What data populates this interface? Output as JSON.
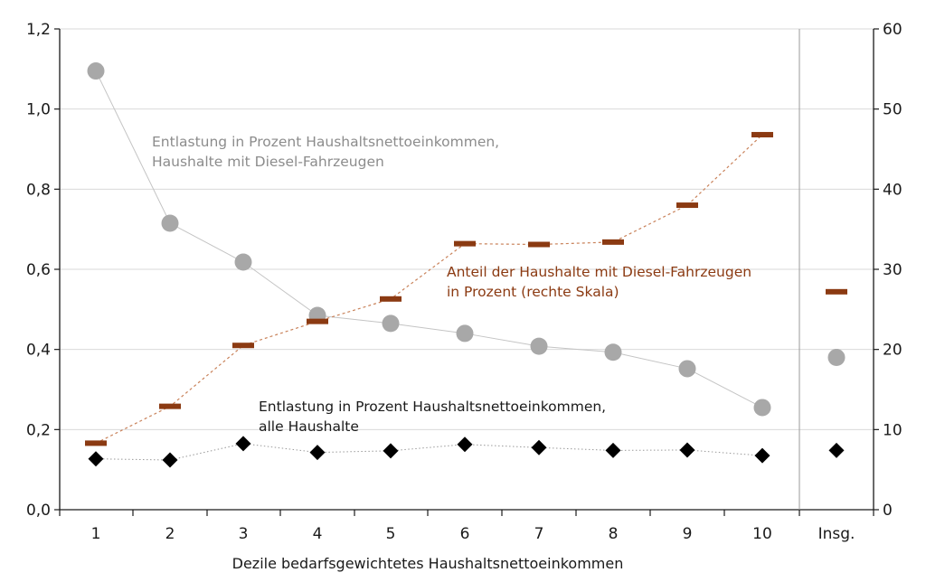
{
  "chart_data": {
    "type": "line",
    "categories": [
      "1",
      "2",
      "3",
      "4",
      "5",
      "6",
      "7",
      "8",
      "9",
      "10",
      "Insg."
    ],
    "xlabel": "Dezile bedarfsgewichtetes Haushaltsnettoeinkommen",
    "y_left": {
      "ylim": [
        0,
        1.2
      ],
      "ticks": [
        0.0,
        0.2,
        0.4,
        0.6,
        0.8,
        1.0,
        1.2
      ],
      "tick_labels": [
        "0,0",
        "0,2",
        "0,4",
        "0,6",
        "0,8",
        "1,0",
        "1,2"
      ]
    },
    "y_right": {
      "ylim": [
        0,
        60
      ],
      "ticks": [
        0,
        10,
        20,
        30,
        40,
        50,
        60
      ],
      "tick_labels": [
        "0",
        "10",
        "20",
        "30",
        "40",
        "50",
        "60"
      ]
    },
    "grid": true,
    "series": [
      {
        "id": "diesel",
        "axis": "left",
        "marker": "circle",
        "color": "#a8a8a8",
        "line_color": "#c4c4c4",
        "values": [
          1.095,
          0.715,
          0.618,
          0.485,
          0.465,
          0.44,
          0.408,
          0.393,
          0.352,
          0.255,
          0.38
        ]
      },
      {
        "id": "share",
        "axis": "right",
        "marker": "dash",
        "color": "#8b3a12",
        "line_color": "#c9825a",
        "values": [
          8.3,
          12.9,
          20.5,
          23.5,
          26.3,
          33.2,
          33.1,
          33.4,
          38.0,
          46.8,
          27.2
        ]
      },
      {
        "id": "all",
        "axis": "left",
        "marker": "diamond",
        "color": "#000000",
        "line_color": "#9a9a9a",
        "values": [
          0.127,
          0.124,
          0.165,
          0.143,
          0.147,
          0.163,
          0.155,
          0.148,
          0.149,
          0.135,
          0.148
        ]
      }
    ],
    "annotations": [
      {
        "series": "diesel",
        "color": "#8c8c8c",
        "lines": [
          "Entlastung in Prozent Haushaltsnettoeinkommen,",
          "Haushalte mit Diesel-Fahrzeugen"
        ]
      },
      {
        "series": "share",
        "color": "#8b3a12",
        "lines": [
          "Anteil der Haushalte mit Diesel-Fahrzeugen",
          "in Prozent (rechte Skala)"
        ]
      },
      {
        "series": "all",
        "color": "#1a1a1a",
        "lines": [
          "Entlastung in Prozent Haushaltsnettoeinkommen,",
          "alle Haushalte"
        ]
      }
    ]
  }
}
